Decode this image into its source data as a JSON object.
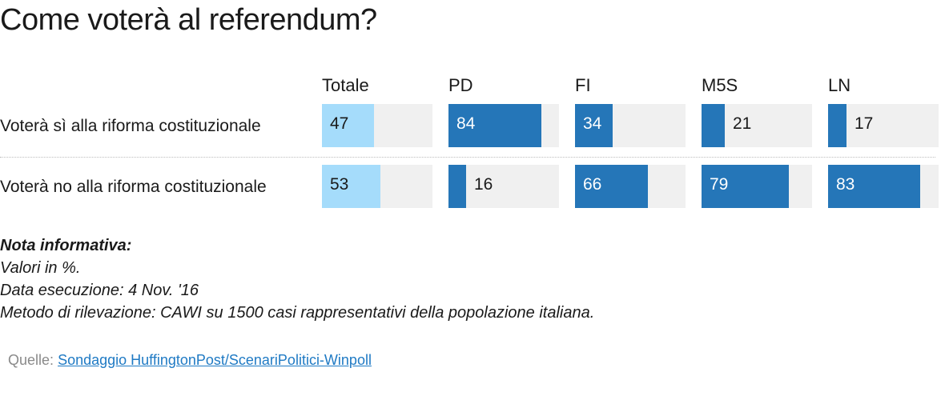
{
  "title": "Come voterà al referendum?",
  "colors": {
    "total": "#a5dcfb",
    "party": "#2576b8",
    "track": "#f0f0f0",
    "text_dark": "#1a1a1a",
    "text_light": "#ffffff"
  },
  "chart_data": {
    "type": "bar",
    "title": "Come voterà al referendum?",
    "columns": [
      "Totale",
      "PD",
      "FI",
      "M5S",
      "LN"
    ],
    "rows": [
      {
        "label": "Voterà sì alla riforma costituzionale",
        "values": [
          47,
          84,
          34,
          21,
          17
        ]
      },
      {
        "label": "Voterà no alla riforma costituzionale",
        "values": [
          53,
          16,
          66,
          79,
          83
        ]
      }
    ],
    "xlim": [
      0,
      100
    ],
    "unit": "%"
  },
  "notes": {
    "title": "Nota informativa:",
    "lines": [
      "Valori in %.",
      "Data esecuzione: 4 Nov. '16",
      "Metodo di rilevazione: CAWI su 1500 casi rappresentativi della popolazione italiana."
    ]
  },
  "source": {
    "label": "Quelle:",
    "link_text": "Sondaggio HuffingtonPost/ScenariPolitici-Winpoll"
  }
}
